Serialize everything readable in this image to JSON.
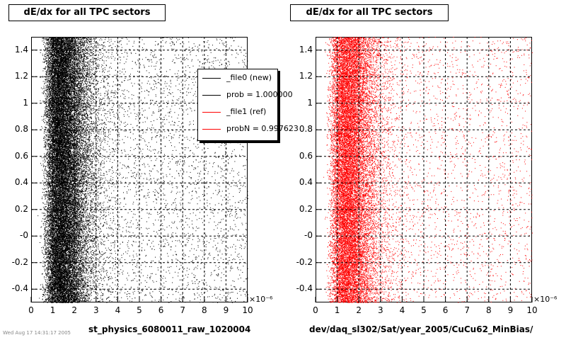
{
  "canvas": {
    "footnote": "Wed Aug 17 14:31:17 2005"
  },
  "chart_data": [
    {
      "type": "scatter",
      "title": "dE/dx for all TPC sectors",
      "xlabel": "st_physics_6080011_raw_1020004",
      "ylabel": "",
      "x_exponent_label": "×10⁻⁶",
      "xlim": [
        0,
        10
      ],
      "ylim": [
        -0.5,
        1.5
      ],
      "x_ticks": [
        0,
        1,
        2,
        3,
        4,
        5,
        6,
        7,
        8,
        9,
        10
      ],
      "y_ticks": [
        -0.4,
        -0.2,
        0,
        0.2,
        0.4,
        0.6,
        0.8,
        1,
        1.2,
        1.4
      ],
      "y_tick_labels": [
        "-0.4",
        "-0.2",
        "-0",
        "0.2",
        "0.4",
        "0.6",
        "0.8",
        "1",
        "1.2",
        "1.4"
      ],
      "grid": true,
      "marker_color": "#000000",
      "density_peak_x": 1.5,
      "legend_position": "top-right",
      "legend": [
        {
          "label": "_file0 (new)",
          "color": "#000000"
        },
        {
          "label": "prob = 1.000000",
          "color": "#000000"
        },
        {
          "label": "_file1 (ref)",
          "color": "#ff0000"
        },
        {
          "label": "probN = 0.997623",
          "color": "#ff0000"
        }
      ]
    },
    {
      "type": "scatter",
      "title": "dE/dx for all TPC sectors",
      "xlabel": "dev/daq_sl302/Sat/year_2005/CuCu62_MinBias/",
      "ylabel": "",
      "x_exponent_label": "×10⁻⁶",
      "xlim": [
        0,
        10
      ],
      "ylim": [
        -0.5,
        1.5
      ],
      "x_ticks": [
        0,
        1,
        2,
        3,
        4,
        5,
        6,
        7,
        8,
        9,
        10
      ],
      "y_ticks": [
        -0.4,
        -0.2,
        0,
        0.2,
        0.4,
        0.6,
        0.8,
        1,
        1.2,
        1.4
      ],
      "y_tick_labels": [
        "-0.4",
        "-0.2",
        "-0",
        "0.2",
        "0.4",
        "0.6",
        "0.8",
        "1",
        "1.2",
        "1.4"
      ],
      "grid": true,
      "marker_color": "#ff0000",
      "density_peak_x": 1.6
    }
  ]
}
